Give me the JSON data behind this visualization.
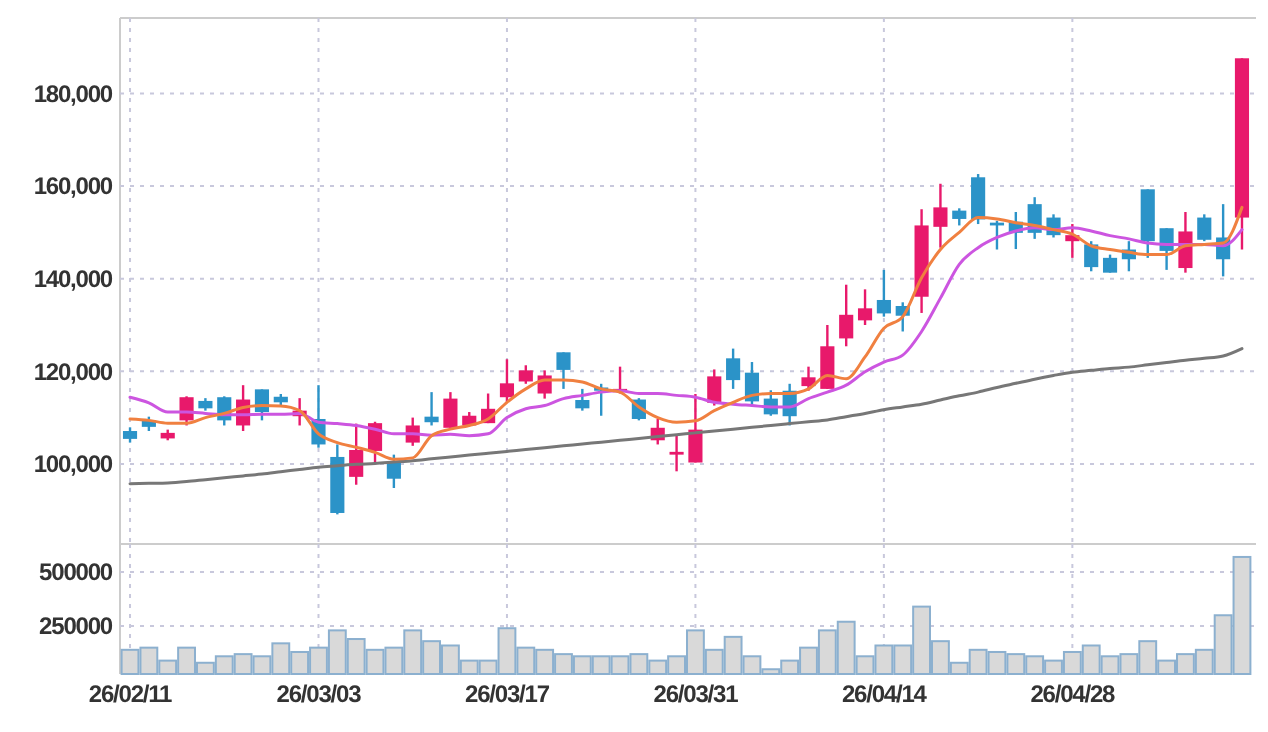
{
  "chart_data": [
    {
      "type": "candlestick",
      "categories": [
        null,
        null,
        null,
        null,
        null,
        null,
        null,
        null,
        null,
        null,
        null,
        null,
        null,
        null,
        null,
        null,
        null,
        null,
        null,
        null,
        null,
        null,
        null,
        null,
        null,
        null,
        null,
        null,
        null,
        null,
        null,
        null,
        null,
        null,
        null,
        null,
        null,
        null,
        null,
        null,
        null,
        null,
        null,
        null,
        null,
        null,
        null,
        null,
        null,
        null,
        null,
        null,
        null,
        null,
        null,
        null,
        null,
        null,
        null,
        null
      ],
      "ohlc": [
        [
          107100,
          107900,
          104600,
          105400
        ],
        [
          109400,
          110200,
          107100,
          108000
        ],
        [
          105500,
          107400,
          105100,
          106700
        ],
        [
          109400,
          114600,
          108300,
          114400
        ],
        [
          113600,
          114200,
          111500,
          112000
        ],
        [
          114400,
          114600,
          108300,
          109400
        ],
        [
          108300,
          117000,
          107100,
          113900
        ],
        [
          116100,
          116100,
          109400,
          111200
        ],
        [
          114500,
          115100,
          112600,
          113300
        ],
        [
          110300,
          114200,
          108300,
          111500
        ],
        [
          109700,
          117000,
          103500,
          104200
        ],
        [
          101500,
          104200,
          89100,
          89400
        ],
        [
          97200,
          108700,
          95500,
          103000
        ],
        [
          102800,
          109100,
          100300,
          108800
        ],
        [
          100400,
          102000,
          94800,
          96800
        ],
        [
          104600,
          110000,
          103900,
          108300
        ],
        [
          110200,
          115500,
          108300,
          109000
        ],
        [
          107800,
          115500,
          107800,
          114100
        ],
        [
          108300,
          111200,
          108300,
          110400
        ],
        [
          108800,
          115200,
          108800,
          111900
        ],
        [
          114400,
          122600,
          113300,
          117400
        ],
        [
          117800,
          121300,
          117300,
          120200
        ],
        [
          115200,
          120200,
          114100,
          119100
        ],
        [
          124100,
          124100,
          116200,
          120300
        ],
        [
          113800,
          116200,
          111500,
          112000
        ],
        [
          116500,
          117300,
          110400,
          115800
        ],
        [
          115500,
          121000,
          115200,
          116200
        ],
        [
          113900,
          114200,
          109400,
          109700
        ],
        [
          105100,
          109700,
          104200,
          107800
        ],
        [
          102000,
          106100,
          98400,
          102600
        ],
        [
          100300,
          115100,
          100300,
          107400
        ],
        [
          113200,
          120400,
          112600,
          118900
        ],
        [
          122800,
          124900,
          116200,
          118100
        ],
        [
          119700,
          122000,
          112600,
          113500
        ],
        [
          114100,
          115900,
          110400,
          110700
        ],
        [
          115800,
          117300,
          108300,
          110300
        ],
        [
          116800,
          121000,
          115800,
          118700
        ],
        [
          116200,
          130000,
          116200,
          125400
        ],
        [
          127100,
          138700,
          125400,
          132200
        ],
        [
          131000,
          137700,
          130000,
          133600
        ],
        [
          135400,
          141900,
          131800,
          132500
        ],
        [
          134100,
          134900,
          128600,
          132000
        ],
        [
          136100,
          155000,
          132600,
          151500
        ],
        [
          151200,
          160500,
          146700,
          155400
        ],
        [
          154700,
          155200,
          151500,
          152900
        ],
        [
          161900,
          162600,
          151800,
          152800
        ],
        [
          152100,
          152500,
          146300,
          151500
        ],
        [
          152300,
          154400,
          146400,
          149900
        ],
        [
          156100,
          157600,
          148600,
          149900
        ],
        [
          153200,
          153900,
          148900,
          149400
        ],
        [
          148100,
          151800,
          144500,
          149400
        ],
        [
          147400,
          148100,
          141600,
          142500
        ],
        [
          144500,
          145200,
          141300,
          141300
        ],
        [
          146300,
          148100,
          141600,
          144200
        ],
        [
          159300,
          159300,
          144500,
          148100
        ],
        [
          150900,
          150900,
          141900,
          146000
        ],
        [
          142300,
          154400,
          141300,
          150200
        ],
        [
          153200,
          153900,
          148100,
          148400
        ],
        [
          148900,
          156100,
          140500,
          144200
        ],
        [
          153200,
          187600,
          146300,
          187600
        ]
      ],
      "colors": [
        "#2b93c8",
        "#2b93c8",
        "#e8196b",
        "#e8196b",
        "#2b93c8",
        "#2b93c8",
        "#e8196b",
        "#2b93c8",
        "#2b93c8",
        "#e8196b",
        "#2b93c8",
        "#2b93c8",
        "#e8196b",
        "#e8196b",
        "#2b93c8",
        "#e8196b",
        "#2b93c8",
        "#e8196b",
        "#e8196b",
        "#e8196b",
        "#e8196b",
        "#e8196b",
        "#e8196b",
        "#2b93c8",
        "#2b93c8",
        "#2b93c8",
        "#e8196b",
        "#2b93c8",
        "#e8196b",
        "#e8196b",
        "#e8196b",
        "#e8196b",
        "#2b93c8",
        "#2b93c8",
        "#2b93c8",
        "#2b93c8",
        "#e8196b",
        "#e8196b",
        "#e8196b",
        "#e8196b",
        "#2b93c8",
        "#2b93c8",
        "#e8196b",
        "#e8196b",
        "#2b93c8",
        "#2b93c8",
        "#2b93c8",
        "#2b93c8",
        "#2b93c8",
        "#2b93c8",
        "#e8196b",
        "#2b93c8",
        "#2b93c8",
        "#2b93c8",
        "#2b93c8",
        "#2b93c8",
        "#e8196b",
        "#2b93c8",
        "#2b93c8",
        "#e8196b"
      ],
      "series": [
        {
          "type": "line",
          "color": "#777777",
          "values": [
            95700,
            95800,
            95900,
            96200,
            96600,
            97000,
            97400,
            97800,
            98300,
            98800,
            99300,
            99600,
            99900,
            100100,
            100400,
            100700,
            101100,
            101500,
            101900,
            102300,
            102700,
            103100,
            103500,
            103900,
            104300,
            104700,
            105100,
            105500,
            105900,
            106300,
            106700,
            107100,
            107500,
            107900,
            108300,
            108700,
            109100,
            109500,
            110200,
            110900,
            111700,
            112300,
            112900,
            113800,
            114700,
            115500,
            116500,
            117400,
            118300,
            119100,
            119800,
            120200,
            120600,
            120900,
            121400,
            121900,
            122400,
            122800,
            123300,
            124900
          ]
        },
        {
          "type": "line",
          "color": "#cc55e0",
          "values": [
            114400,
            113200,
            111200,
            111200,
            110900,
            110600,
            110600,
            110700,
            110700,
            110900,
            109000,
            108700,
            108300,
            107500,
            106500,
            106500,
            106200,
            106400,
            106100,
            106500,
            110000,
            111900,
            112600,
            114100,
            114800,
            115500,
            115800,
            115200,
            115200,
            114800,
            114400,
            113300,
            112900,
            112600,
            112300,
            112300,
            114100,
            115500,
            117000,
            119900,
            122000,
            123500,
            128600,
            135800,
            143100,
            146700,
            148900,
            150300,
            151000,
            150600,
            151000,
            150300,
            149300,
            148600,
            147700,
            147400,
            147400,
            147400,
            147100,
            150600
          ]
        },
        {
          "type": "line",
          "color": "#f08040",
          "values": [
            109700,
            109400,
            108800,
            108800,
            110000,
            110900,
            112200,
            112600,
            112500,
            111500,
            106500,
            104600,
            103600,
            102500,
            101000,
            101300,
            106100,
            107500,
            108300,
            109700,
            113300,
            116200,
            118100,
            118100,
            117700,
            116200,
            115500,
            112300,
            110000,
            109000,
            109300,
            111500,
            113300,
            114800,
            115200,
            115200,
            116200,
            119100,
            118400,
            123100,
            129300,
            131800,
            140200,
            146300,
            150000,
            153200,
            152900,
            152100,
            151500,
            150600,
            149600,
            147100,
            146300,
            145700,
            145200,
            145200,
            147100,
            147400,
            147700,
            155400
          ]
        }
      ],
      "ylim": [
        82700,
        196300
      ],
      "yticks": [
        {
          "value": 100000,
          "label": "100,000"
        },
        {
          "value": 120000,
          "label": "120,000"
        },
        {
          "value": 140000,
          "label": "140,000"
        },
        {
          "value": 160000,
          "label": "160,000"
        },
        {
          "value": 180000,
          "label": "180,000"
        }
      ],
      "grid": true,
      "tick_labels": "y"
    },
    {
      "type": "bar",
      "categories": [
        "26/02/11",
        null,
        null,
        null,
        null,
        null,
        null,
        null,
        null,
        null,
        "26/03/03",
        null,
        null,
        null,
        null,
        null,
        null,
        null,
        null,
        null,
        "26/03/17",
        null,
        null,
        null,
        null,
        null,
        null,
        null,
        null,
        null,
        "26/03/31",
        null,
        null,
        null,
        null,
        null,
        null,
        null,
        null,
        null,
        "26/04/14",
        null,
        null,
        null,
        null,
        null,
        null,
        null,
        null,
        null,
        "26/04/28",
        null,
        null,
        null,
        null,
        null,
        null,
        null,
        null,
        null
      ],
      "values": [
        140000,
        150000,
        90000,
        150000,
        80000,
        110000,
        120000,
        110000,
        170000,
        130000,
        150000,
        230000,
        190000,
        140000,
        150000,
        230000,
        180000,
        160000,
        90000,
        90000,
        240000,
        150000,
        140000,
        120000,
        110000,
        110000,
        110000,
        120000,
        90000,
        110000,
        230000,
        140000,
        200000,
        110000,
        50000,
        90000,
        150000,
        230000,
        270000,
        110000,
        160000,
        160000,
        340000,
        180000,
        80000,
        140000,
        130000,
        120000,
        110000,
        90000,
        130000,
        160000,
        110000,
        120000,
        180000,
        90000,
        120000,
        140000,
        300000,
        570000
      ],
      "color": "#d9d9d9",
      "ylim": [
        28000,
        630000
      ],
      "yticks": [
        250000,
        500000
      ],
      "grid": true
    }
  ]
}
